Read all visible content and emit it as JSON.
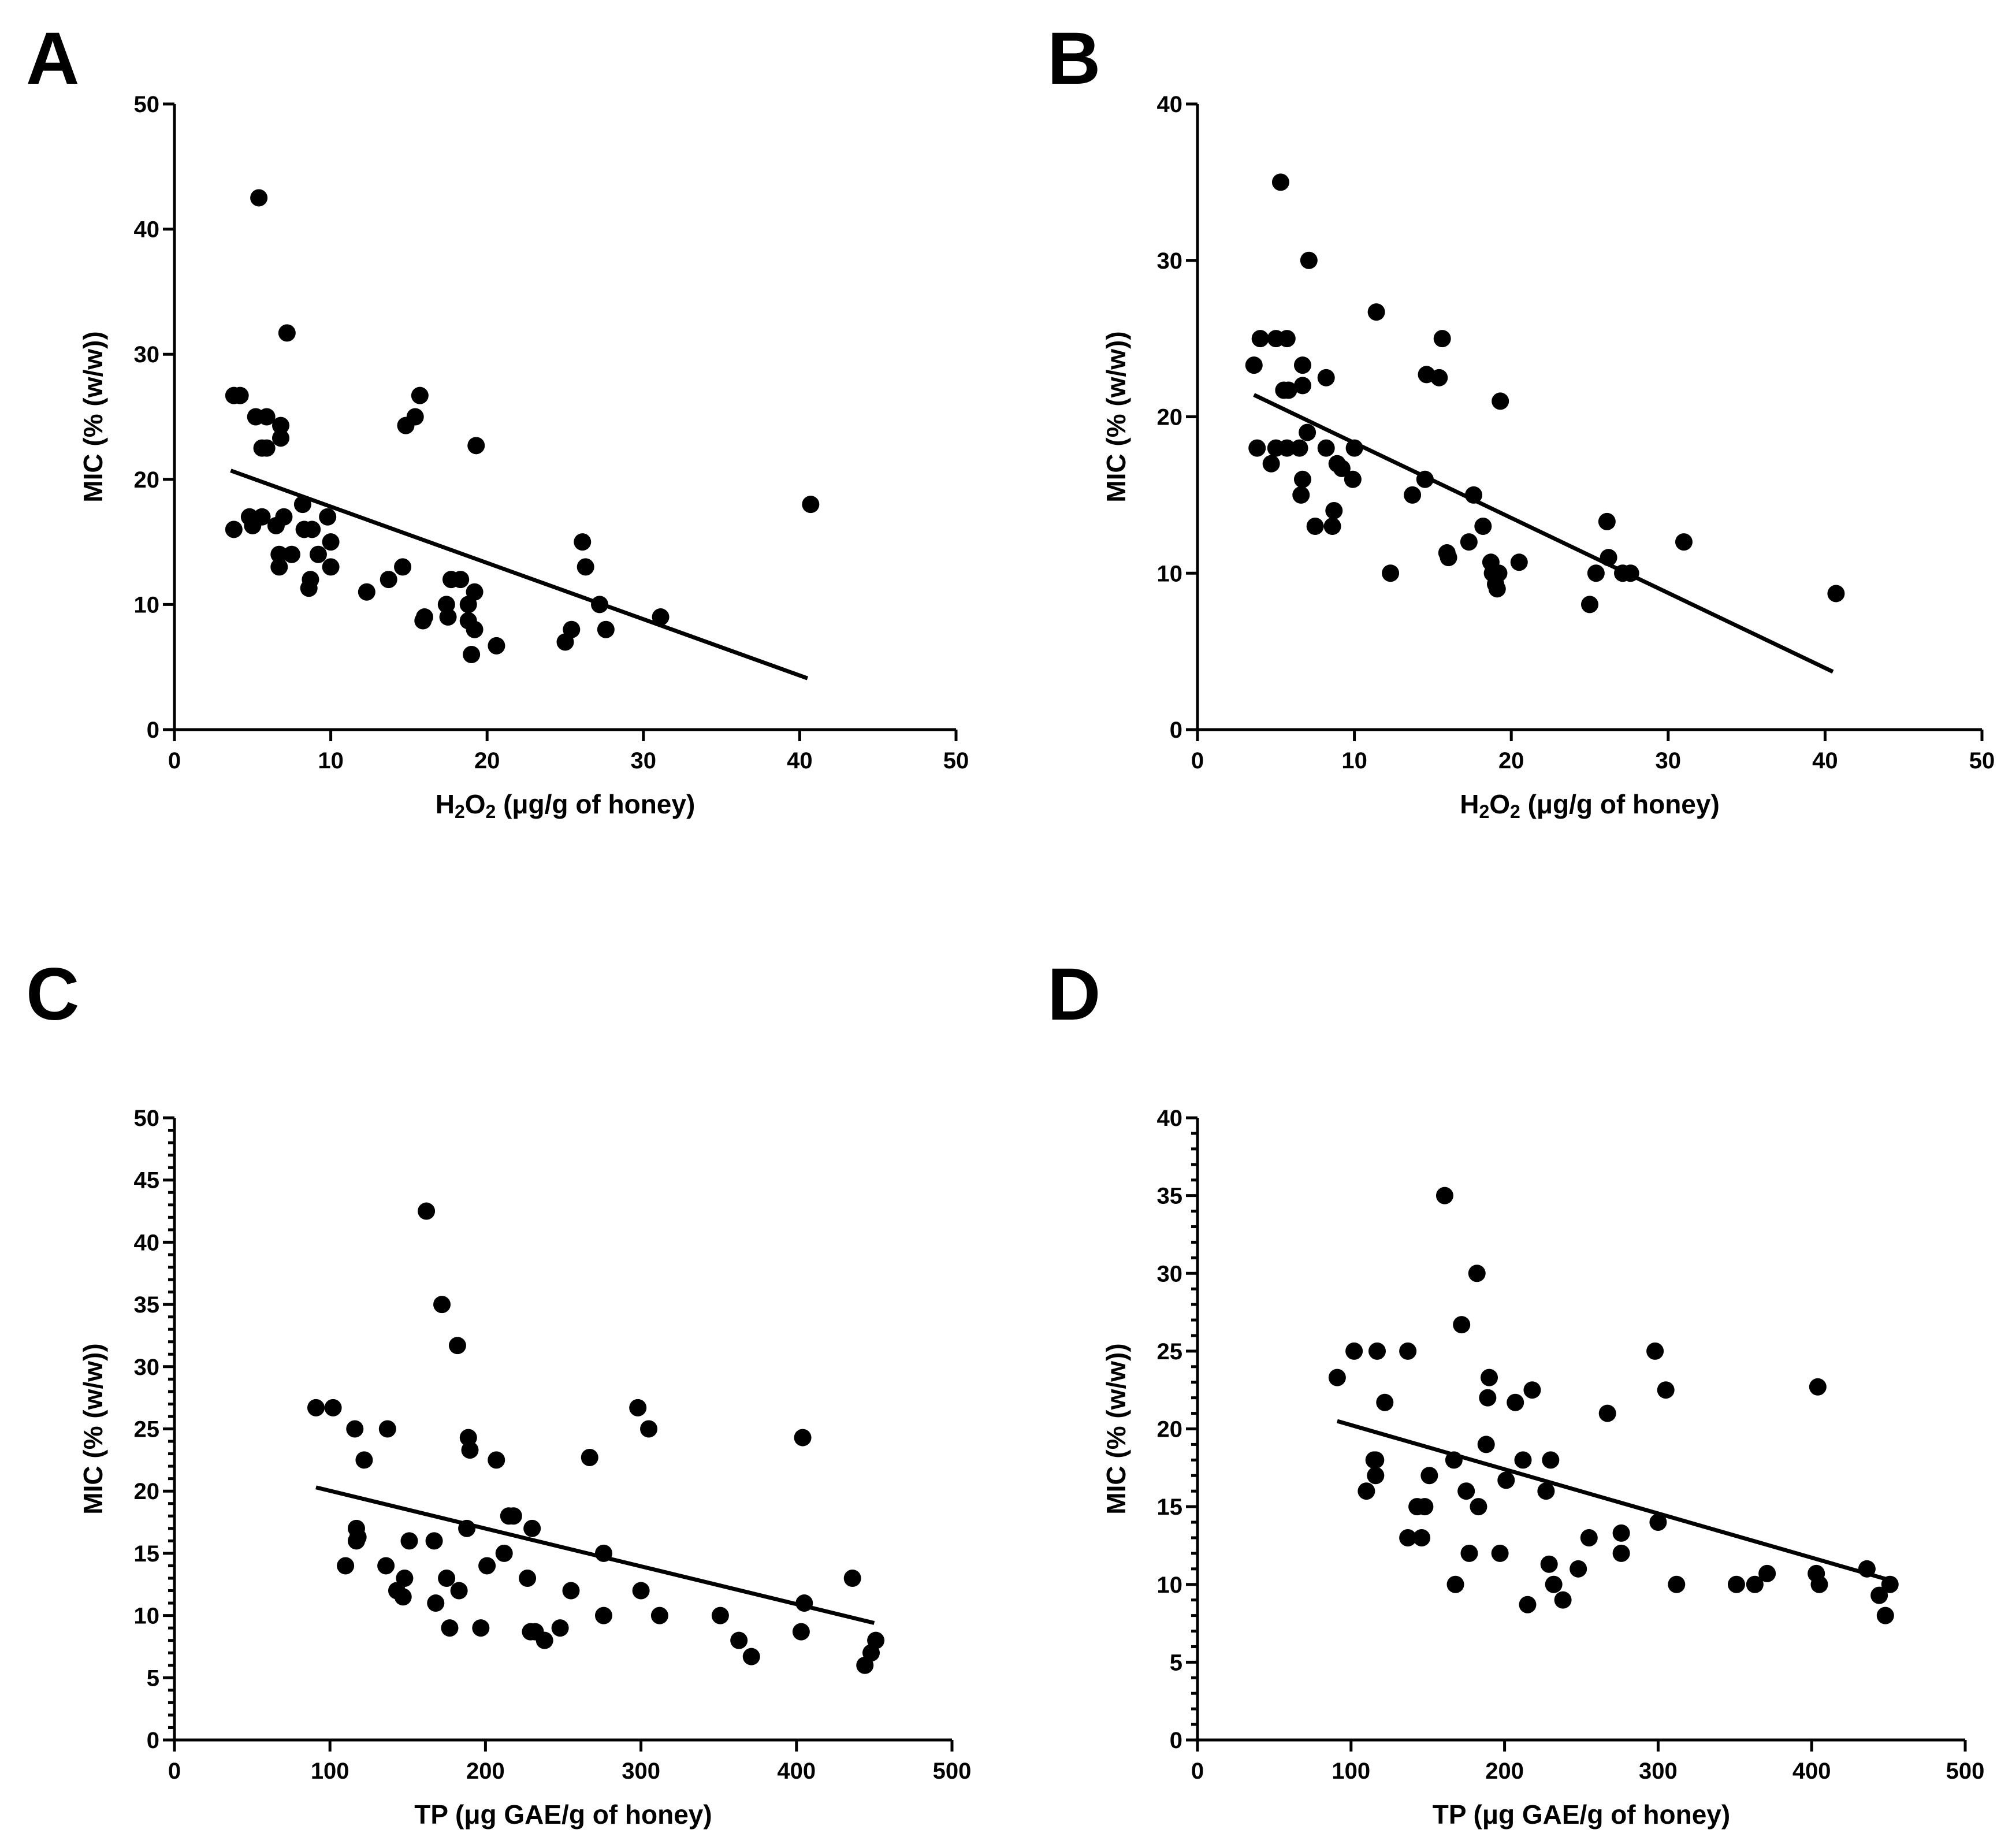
{
  "chart_data": [
    {
      "type": "scatter",
      "panel_label": "A",
      "xlabel": {
        "main": "H",
        "sub1": "2",
        "mid": "O",
        "sub2": "2",
        "rest": " (μg/g of honey)"
      },
      "ylabel": "MIC (% (w/w))",
      "xlim": [
        0,
        50
      ],
      "ylim": [
        0,
        50
      ],
      "xticks": [
        0,
        10,
        20,
        30,
        40,
        50
      ],
      "yticks": [
        0,
        10,
        20,
        30,
        40,
        50
      ],
      "minor_y": [],
      "points": [
        [
          3.8,
          26.7
        ],
        [
          4.2,
          26.7
        ],
        [
          3.8,
          16
        ],
        [
          4.8,
          17
        ],
        [
          5,
          16.3
        ],
        [
          5.2,
          25
        ],
        [
          5.4,
          42.5
        ],
        [
          5.6,
          17
        ],
        [
          5.6,
          22.5
        ],
        [
          5.9,
          22.5
        ],
        [
          5.9,
          25
        ],
        [
          6.5,
          16.3
        ],
        [
          6.7,
          14
        ],
        [
          6.7,
          13
        ],
        [
          6.8,
          24.3
        ],
        [
          6.8,
          23.3
        ],
        [
          7,
          17
        ],
        [
          7.2,
          31.7
        ],
        [
          7.5,
          14
        ],
        [
          8.2,
          18
        ],
        [
          8.3,
          16
        ],
        [
          8.6,
          11.3
        ],
        [
          8.7,
          12
        ],
        [
          8.8,
          16
        ],
        [
          9.2,
          14
        ],
        [
          9.8,
          17
        ],
        [
          10,
          13
        ],
        [
          10,
          15
        ],
        [
          12.3,
          11
        ],
        [
          13.7,
          12
        ],
        [
          14.6,
          13
        ],
        [
          14.8,
          24.3
        ],
        [
          15.4,
          25
        ],
        [
          15.7,
          26.7
        ],
        [
          15.9,
          8.7
        ],
        [
          16,
          9
        ],
        [
          17.4,
          10
        ],
        [
          17.5,
          9
        ],
        [
          17.7,
          12
        ],
        [
          18.3,
          12
        ],
        [
          18.8,
          10
        ],
        [
          18.8,
          8.7
        ],
        [
          19,
          6
        ],
        [
          19.2,
          8
        ],
        [
          19.2,
          11
        ],
        [
          19.3,
          22.7
        ],
        [
          20.6,
          6.7
        ],
        [
          25,
          7
        ],
        [
          25.4,
          8
        ],
        [
          26.1,
          15
        ],
        [
          26.3,
          13
        ],
        [
          27.2,
          10
        ],
        [
          27.6,
          8
        ],
        [
          31.1,
          9
        ],
        [
          40.7,
          18
        ]
      ],
      "fit": [
        [
          3.6,
          20.7
        ],
        [
          40.5,
          4.1
        ]
      ]
    },
    {
      "type": "scatter",
      "panel_label": "B",
      "xlabel": {
        "main": "H",
        "sub1": "2",
        "mid": "O",
        "sub2": "2",
        "rest": " (μg/g of honey)"
      },
      "ylabel": "MIC (% (w/w))",
      "xlim": [
        0,
        50
      ],
      "ylim": [
        0,
        40
      ],
      "xticks": [
        0,
        10,
        20,
        30,
        40,
        50
      ],
      "yticks": [
        0,
        10,
        20,
        30,
        40
      ],
      "minor_y": [],
      "points": [
        [
          3.6,
          23.3
        ],
        [
          3.8,
          18
        ],
        [
          4,
          25
        ],
        [
          4.7,
          17
        ],
        [
          5,
          18
        ],
        [
          5,
          25
        ],
        [
          5.3,
          35
        ],
        [
          5.5,
          21.7
        ],
        [
          5.7,
          18
        ],
        [
          5.7,
          25
        ],
        [
          5.8,
          21.7
        ],
        [
          6.5,
          18
        ],
        [
          6.6,
          15
        ],
        [
          6.7,
          16
        ],
        [
          6.7,
          22
        ],
        [
          6.7,
          23.3
        ],
        [
          7,
          19
        ],
        [
          7.1,
          30
        ],
        [
          7.5,
          13
        ],
        [
          8.2,
          22.5
        ],
        [
          8.2,
          18
        ],
        [
          8.6,
          13
        ],
        [
          8.7,
          14
        ],
        [
          8.9,
          17
        ],
        [
          9.2,
          16.7
        ],
        [
          9.9,
          16
        ],
        [
          10,
          18
        ],
        [
          11.4,
          26.7
        ],
        [
          12.3,
          10
        ],
        [
          13.7,
          15
        ],
        [
          14.5,
          16
        ],
        [
          14.6,
          22.7
        ],
        [
          15.4,
          22.5
        ],
        [
          15.6,
          25
        ],
        [
          15.9,
          11.3
        ],
        [
          16,
          11
        ],
        [
          17.3,
          12
        ],
        [
          17.6,
          15
        ],
        [
          18.2,
          13
        ],
        [
          18.7,
          10.7
        ],
        [
          18.8,
          10
        ],
        [
          19,
          9.3
        ],
        [
          19.1,
          9
        ],
        [
          19.2,
          10
        ],
        [
          19.3,
          21
        ],
        [
          20.5,
          10.7
        ],
        [
          25,
          8
        ],
        [
          25.4,
          10
        ],
        [
          26.1,
          13.3
        ],
        [
          26.2,
          11
        ],
        [
          27.1,
          10
        ],
        [
          27.6,
          10
        ],
        [
          31,
          12
        ],
        [
          40.7,
          8.7
        ]
      ],
      "fit": [
        [
          3.6,
          21.4
        ],
        [
          40.5,
          3.7
        ]
      ]
    },
    {
      "type": "scatter",
      "panel_label": "C",
      "xlabel": {
        "main": "TP (μg GAE/g of honey)"
      },
      "ylabel": "MIC (% (w/w))",
      "xlim": [
        0,
        500
      ],
      "ylim": [
        0,
        50
      ],
      "xticks": [
        0,
        100,
        200,
        300,
        400,
        500
      ],
      "yticks": [
        0,
        5,
        10,
        15,
        20,
        25,
        30,
        35,
        40,
        45,
        50
      ],
      "minor_y": [
        1,
        2,
        3,
        4,
        6,
        7,
        8,
        9,
        11,
        12,
        13,
        14,
        16,
        17,
        18,
        19,
        21,
        22,
        23,
        24,
        26,
        27,
        28,
        29,
        31,
        32,
        33,
        34,
        36,
        37,
        38,
        39,
        41,
        42,
        43,
        44,
        46,
        47,
        48,
        49
      ],
      "points": [
        [
          91,
          26.7
        ],
        [
          102,
          26.7
        ],
        [
          110,
          14
        ],
        [
          116,
          25
        ],
        [
          117,
          17
        ],
        [
          117,
          16
        ],
        [
          118,
          16.3
        ],
        [
          122,
          22.5
        ],
        [
          136,
          14
        ],
        [
          137,
          25
        ],
        [
          143,
          12
        ],
        [
          147,
          11.5
        ],
        [
          148,
          13
        ],
        [
          151,
          16
        ],
        [
          162,
          42.5
        ],
        [
          167,
          16
        ],
        [
          168,
          11
        ],
        [
          172,
          35
        ],
        [
          175,
          13
        ],
        [
          177,
          9
        ],
        [
          182,
          31.7
        ],
        [
          183,
          12
        ],
        [
          188,
          17
        ],
        [
          189,
          24.3
        ],
        [
          190,
          23.3
        ],
        [
          197,
          9
        ],
        [
          201,
          14
        ],
        [
          207,
          22.5
        ],
        [
          212,
          15
        ],
        [
          215,
          18
        ],
        [
          218,
          18
        ],
        [
          227,
          13
        ],
        [
          229,
          8.7
        ],
        [
          230,
          17
        ],
        [
          232,
          8.7
        ],
        [
          238,
          8
        ],
        [
          248,
          9
        ],
        [
          255,
          12
        ],
        [
          267,
          22.7
        ],
        [
          276,
          15
        ],
        [
          276,
          10
        ],
        [
          298,
          26.7
        ],
        [
          300,
          12
        ],
        [
          305,
          25
        ],
        [
          312,
          10
        ],
        [
          351,
          10
        ],
        [
          363,
          8
        ],
        [
          371,
          6.7
        ],
        [
          403,
          8.7
        ],
        [
          404,
          24.3
        ],
        [
          405,
          11
        ],
        [
          436,
          13
        ],
        [
          444,
          6
        ],
        [
          448,
          7
        ],
        [
          451,
          8
        ]
      ],
      "fit": [
        [
          91,
          20.3
        ],
        [
          450,
          9.4
        ]
      ]
    },
    {
      "type": "scatter",
      "panel_label": "D",
      "xlabel": {
        "main": "TP (μg GAE/g of honey)"
      },
      "ylabel": "MIC (% (w/w))",
      "xlim": [
        0,
        500
      ],
      "ylim": [
        0,
        40
      ],
      "xticks": [
        0,
        100,
        200,
        300,
        400,
        500
      ],
      "yticks": [
        0,
        5,
        10,
        15,
        20,
        25,
        30,
        35,
        40
      ],
      "minor_y": [
        1,
        2,
        3,
        4,
        6,
        7,
        8,
        9,
        11,
        12,
        13,
        14,
        16,
        17,
        18,
        19,
        21,
        22,
        23,
        24,
        26,
        27,
        28,
        29,
        31,
        32,
        33,
        34,
        36,
        37,
        38,
        39
      ],
      "points": [
        [
          91,
          23.3
        ],
        [
          102,
          25
        ],
        [
          110,
          16
        ],
        [
          115,
          18
        ],
        [
          116,
          17
        ],
        [
          116,
          18
        ],
        [
          117,
          25
        ],
        [
          122,
          21.7
        ],
        [
          137,
          25
        ],
        [
          137,
          13
        ],
        [
          143,
          15
        ],
        [
          146,
          13
        ],
        [
          148,
          15
        ],
        [
          151,
          17
        ],
        [
          161,
          35
        ],
        [
          167,
          18
        ],
        [
          168,
          10
        ],
        [
          172,
          26.7
        ],
        [
          175,
          16
        ],
        [
          177,
          12
        ],
        [
          182,
          30
        ],
        [
          183,
          15
        ],
        [
          188,
          19
        ],
        [
          189,
          22
        ],
        [
          190,
          23.3
        ],
        [
          197,
          12
        ],
        [
          201,
          16.7
        ],
        [
          207,
          21.7
        ],
        [
          212,
          18
        ],
        [
          215,
          8.7
        ],
        [
          218,
          22.5
        ],
        [
          227,
          16
        ],
        [
          229,
          11.3
        ],
        [
          230,
          18
        ],
        [
          232,
          10
        ],
        [
          238,
          9
        ],
        [
          248,
          11
        ],
        [
          255,
          13
        ],
        [
          267,
          21
        ],
        [
          276,
          13.3
        ],
        [
          276,
          12
        ],
        [
          298,
          25
        ],
        [
          300,
          14
        ],
        [
          305,
          22.5
        ],
        [
          312,
          10
        ],
        [
          351,
          10
        ],
        [
          363,
          10
        ],
        [
          371,
          10.7
        ],
        [
          403,
          10.7
        ],
        [
          404,
          22.7
        ],
        [
          405,
          10
        ],
        [
          436,
          11
        ],
        [
          444,
          9.3
        ],
        [
          448,
          8
        ],
        [
          451,
          10
        ]
      ],
      "fit": [
        [
          91,
          20.5
        ],
        [
          450,
          10.3
        ]
      ]
    }
  ]
}
